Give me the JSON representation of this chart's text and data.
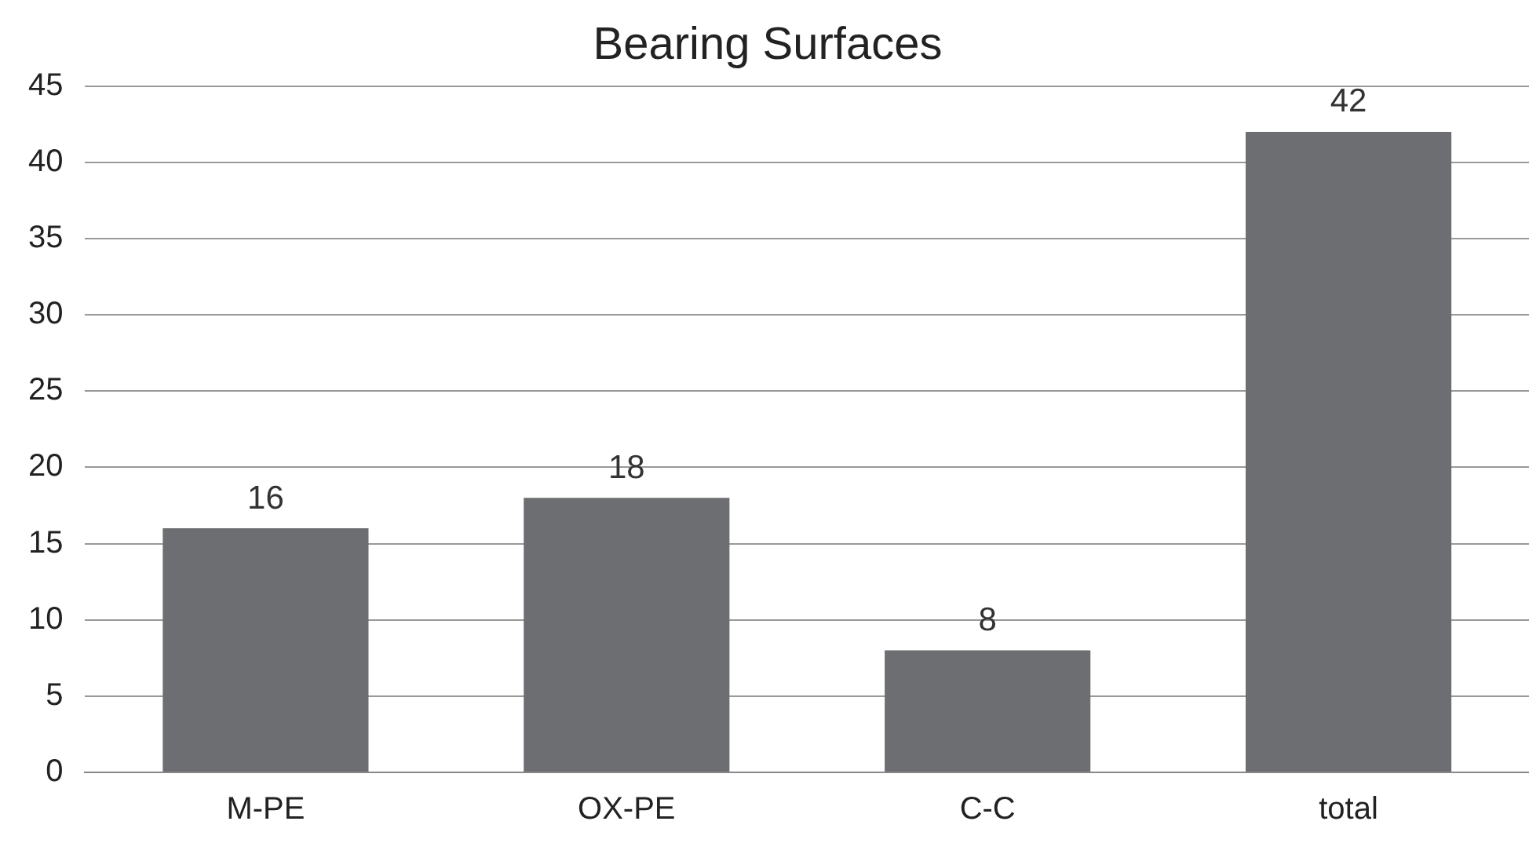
{
  "chart_data": {
    "type": "bar",
    "title": "Bearing Surfaces",
    "categories": [
      "M-PE",
      "OX-PE",
      "C-C",
      "total"
    ],
    "values": [
      16,
      18,
      8,
      42
    ],
    "color": "#6d6e71",
    "ylim": [
      0,
      45
    ],
    "yticks": [
      0,
      5,
      10,
      15,
      20,
      25,
      30,
      35,
      40,
      45
    ],
    "grid": "y",
    "data_labels": true,
    "legend": false
  }
}
